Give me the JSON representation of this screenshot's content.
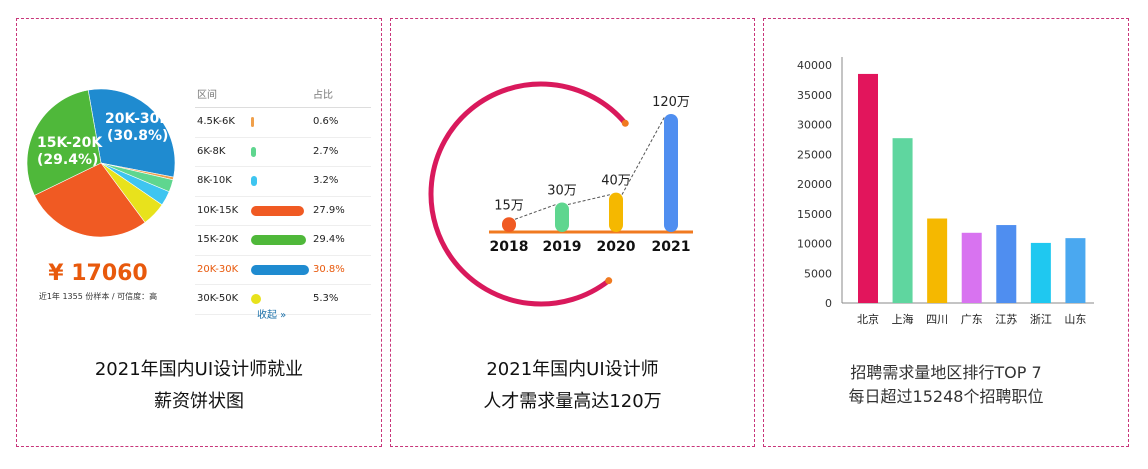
{
  "panel1": {
    "table_header": {
      "range": "区间",
      "ratio": "占比"
    },
    "salary": "¥ 17060",
    "salary_note": "近1年 1355 份样本 / 可信度：高",
    "more": "收起 »",
    "caption_line1": "2021年国内UI设计师就业",
    "caption_line2": "薪资饼状图",
    "pie_labels": {
      "a": "20K-30K",
      "a_pct": "(30.8%)",
      "b": "15K-20K",
      "b_pct": "(29.4%)"
    },
    "colors": {
      "accent": "#e8590c"
    }
  },
  "panel2": {
    "caption_line1": "2021年国内UI设计师",
    "caption_line2": "人才需求量高达120万"
  },
  "panel3": {
    "caption_line1": "招聘需求量地区排行TOP 7",
    "caption_line2": "每日超过15248个招聘职位"
  },
  "chart_data": [
    {
      "type": "pie",
      "categories": [
        "4.5K-6K",
        "6K-8K",
        "8K-10K",
        "10K-15K",
        "15K-20K",
        "20K-30K",
        "30K-50K"
      ],
      "values": [
        0.6,
        2.7,
        3.2,
        27.9,
        29.4,
        30.8,
        5.3
      ],
      "labels": [
        "0.6%",
        "2.7%",
        "3.2%",
        "27.9%",
        "29.4%",
        "30.8%",
        "5.3%"
      ],
      "colors": [
        "#f0a04b",
        "#5fd68f",
        "#3ec5f0",
        "#f05a23",
        "#4fb83a",
        "#1f8bd0",
        "#e8e21c"
      ]
    },
    {
      "type": "bar",
      "categories": [
        "2018",
        "2019",
        "2020",
        "2021"
      ],
      "values": [
        15,
        30,
        40,
        120
      ],
      "labels": [
        "15万",
        "30万",
        "40万",
        "120万"
      ],
      "colors": [
        "#f05a23",
        "#5fd68f",
        "#f5b800",
        "#4f8ef0"
      ]
    },
    {
      "type": "bar",
      "categories": [
        "北京",
        "上海",
        "四川",
        "广东",
        "江苏",
        "浙江",
        "山东"
      ],
      "values": [
        38500,
        27700,
        14200,
        11800,
        13100,
        10100,
        10900
      ],
      "ylim": [
        0,
        40000
      ],
      "yticks": [
        "0",
        "5000",
        "10000",
        "15000",
        "20000",
        "25000",
        "30000",
        "35000",
        "40000"
      ],
      "colors": [
        "#e2155c",
        "#5fd69f",
        "#f5b800",
        "#d873f0",
        "#4f8ef0",
        "#1fc8f0",
        "#4aa8f0"
      ]
    }
  ]
}
